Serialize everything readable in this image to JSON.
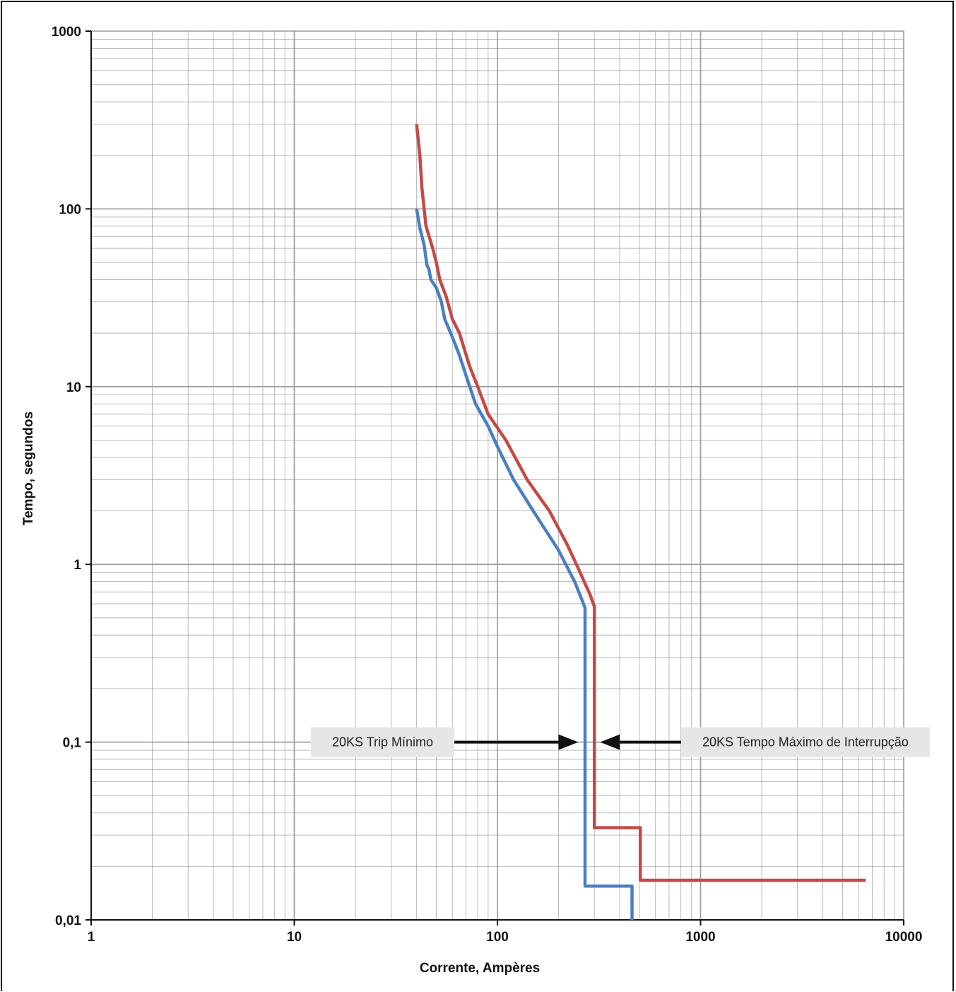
{
  "chart_data": {
    "type": "line",
    "x_scale": "log",
    "y_scale": "log",
    "xlim": [
      1,
      10000
    ],
    "ylim": [
      0.01,
      1000
    ],
    "grid": true,
    "xlabel": "Corrente, Ampères",
    "ylabel": "Tempo, segundos",
    "x_tick_labels": [
      "1",
      "10",
      "100",
      "1000",
      "10000"
    ],
    "y_tick_labels": [
      "1000",
      "100",
      "10",
      "1",
      "0,1",
      "0,01"
    ],
    "x_tick_values": [
      1,
      10,
      100,
      1000,
      10000
    ],
    "y_tick_values": [
      1000,
      100,
      10,
      1,
      0.1,
      0.01
    ],
    "series": [
      {
        "color": "#c44a47",
        "points": [
          [
            40,
            300
          ],
          [
            41.5,
            200
          ],
          [
            42.5,
            130
          ],
          [
            44.5,
            80
          ],
          [
            48,
            60
          ],
          [
            50,
            50
          ],
          [
            52,
            40
          ],
          [
            56,
            32
          ],
          [
            60,
            24
          ],
          [
            65,
            20
          ],
          [
            73,
            13
          ],
          [
            80,
            10
          ],
          [
            90,
            7
          ],
          [
            110,
            5
          ],
          [
            140,
            3
          ],
          [
            180,
            2
          ],
          [
            220,
            1.3
          ],
          [
            250,
            0.95
          ],
          [
            285,
            0.68
          ],
          [
            300,
            0.58
          ],
          [
            300,
            0.033
          ],
          [
            505,
            0.033
          ],
          [
            505,
            0.0167
          ],
          [
            6500,
            0.0167
          ]
        ]
      },
      {
        "color": "#4a7fc1",
        "points": [
          [
            40,
            100
          ],
          [
            41.5,
            78
          ],
          [
            43.5,
            63
          ],
          [
            45,
            48
          ],
          [
            46,
            46
          ],
          [
            47,
            40
          ],
          [
            50,
            36
          ],
          [
            53,
            30
          ],
          [
            55,
            24
          ],
          [
            60,
            19
          ],
          [
            65,
            15
          ],
          [
            72,
            10.5
          ],
          [
            78,
            8
          ],
          [
            90,
            6
          ],
          [
            100,
            4.6
          ],
          [
            120,
            3
          ],
          [
            150,
            2
          ],
          [
            200,
            1.2
          ],
          [
            240,
            0.8
          ],
          [
            270,
            0.57
          ],
          [
            270,
            0.0155
          ],
          [
            460,
            0.0155
          ],
          [
            460,
            0.01
          ]
        ]
      }
    ],
    "annotations": [
      {
        "text": "20KS Trip Mínimo",
        "x": 35,
        "y": 0.1,
        "arrow_to_x": 250,
        "arrow_to_y": 0.1
      },
      {
        "text": "20KS Tempo Máximo de Interrupção",
        "x": 3000,
        "y": 0.1,
        "arrow_to_x": 320,
        "arrow_to_y": 0.1
      }
    ]
  },
  "colors": {
    "grid": "#9a9a9a",
    "axis": "#111111",
    "label_box": "#e6e6e6",
    "arrow": "#111111"
  }
}
